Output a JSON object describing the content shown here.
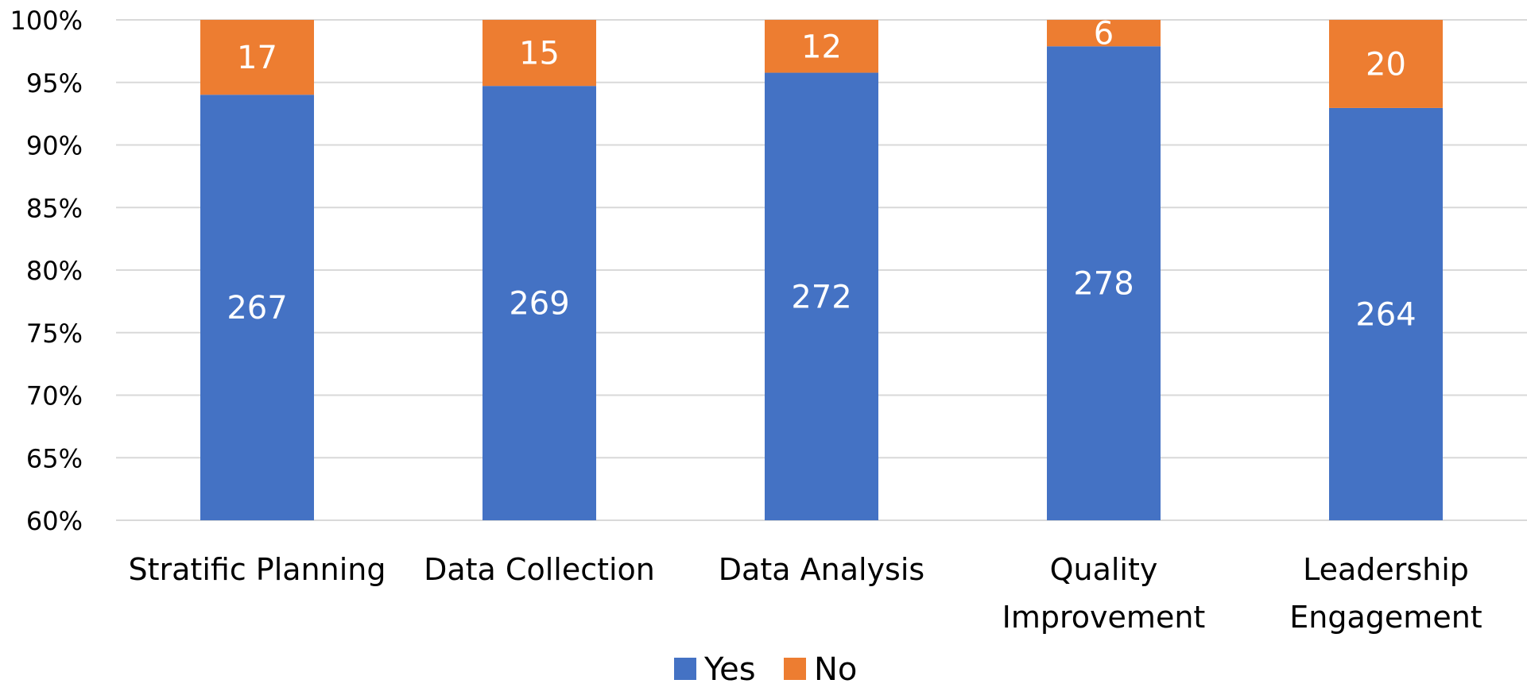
{
  "chart_data": {
    "type": "bar",
    "stacked": true,
    "normalized": true,
    "title": "",
    "xlabel": "",
    "ylabel": "",
    "ylim": [
      60,
      100
    ],
    "yticks": [
      60,
      65,
      70,
      75,
      80,
      85,
      90,
      95,
      100
    ],
    "ytick_format": "{v}%",
    "grid": true,
    "legend_position": "bottom",
    "categories": [
      [
        "Stratific Planning"
      ],
      [
        "Data Collection"
      ],
      [
        "Data Analysis"
      ],
      [
        "Quality",
        "Improvement"
      ],
      [
        "Leadership",
        "Engagement"
      ]
    ],
    "series": [
      {
        "name": "Yes",
        "color": "#4472c4",
        "values": [
          267,
          269,
          272,
          278,
          264
        ]
      },
      {
        "name": "No",
        "color": "#ed7d31",
        "values": [
          17,
          15,
          12,
          6,
          20
        ]
      }
    ]
  }
}
